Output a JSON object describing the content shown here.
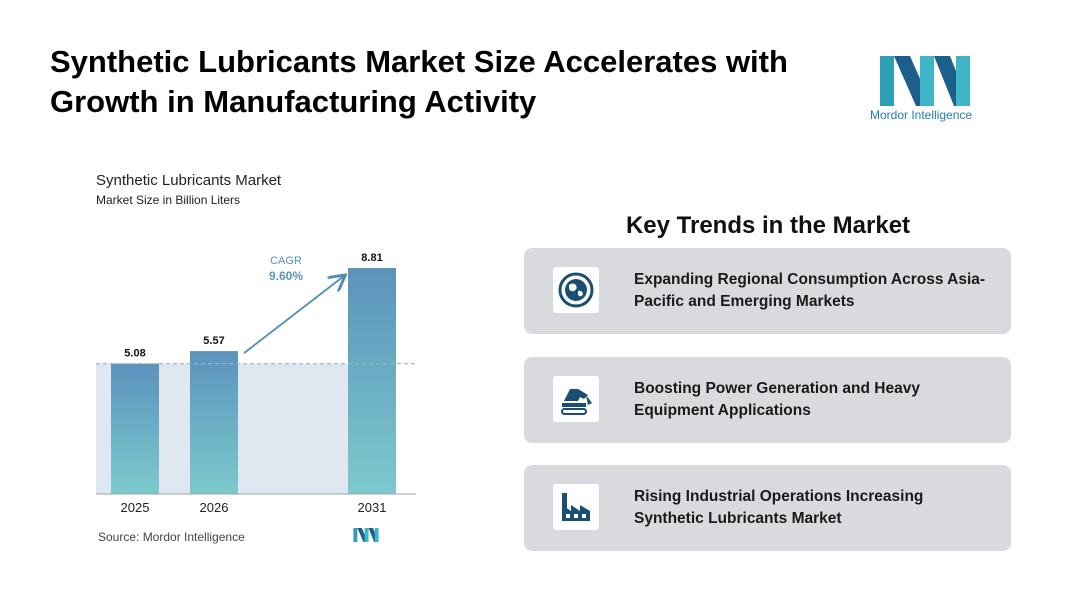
{
  "header": {
    "title": "Synthetic Lubricants Market Size Accelerates with Growth in Manufacturing Activity",
    "brand": "Mordor Intelligence"
  },
  "colors": {
    "bar_top": "#5b93bd",
    "bar_bottom": "#7cc9cc",
    "band": "#dfe8f1",
    "arrow": "#4f8db8",
    "cagr": "#5b93bd",
    "card_bg": "#d8dadd",
    "icon": "#1b4f72"
  },
  "chart_data": {
    "type": "bar",
    "title": "Synthetic Lubricants Market",
    "subtitle": "Market Size in Billion Liters",
    "categories": [
      "2025",
      "2026",
      "2031"
    ],
    "values": [
      5.08,
      5.57,
      8.81
    ],
    "value_labels": [
      "5.08",
      "5.57",
      "8.81"
    ],
    "cagr_label": "CAGR",
    "cagr_value": "9.60%",
    "ylim": [
      0,
      8.81
    ],
    "grid": false,
    "source": "Source:  Mordor Intelligence"
  },
  "trends": {
    "title": "Key Trends in the Market",
    "items": [
      {
        "label": "Expanding Regional Consumption Across Asia-Pacific and Emerging Markets",
        "icon": "globe-icon"
      },
      {
        "label": "Boosting Power Generation and Heavy Equipment Applications",
        "icon": "excavator-icon"
      },
      {
        "label": "Rising Industrial Operations Increasing Synthetic Lubricants Market",
        "icon": "factory-icon"
      }
    ]
  }
}
